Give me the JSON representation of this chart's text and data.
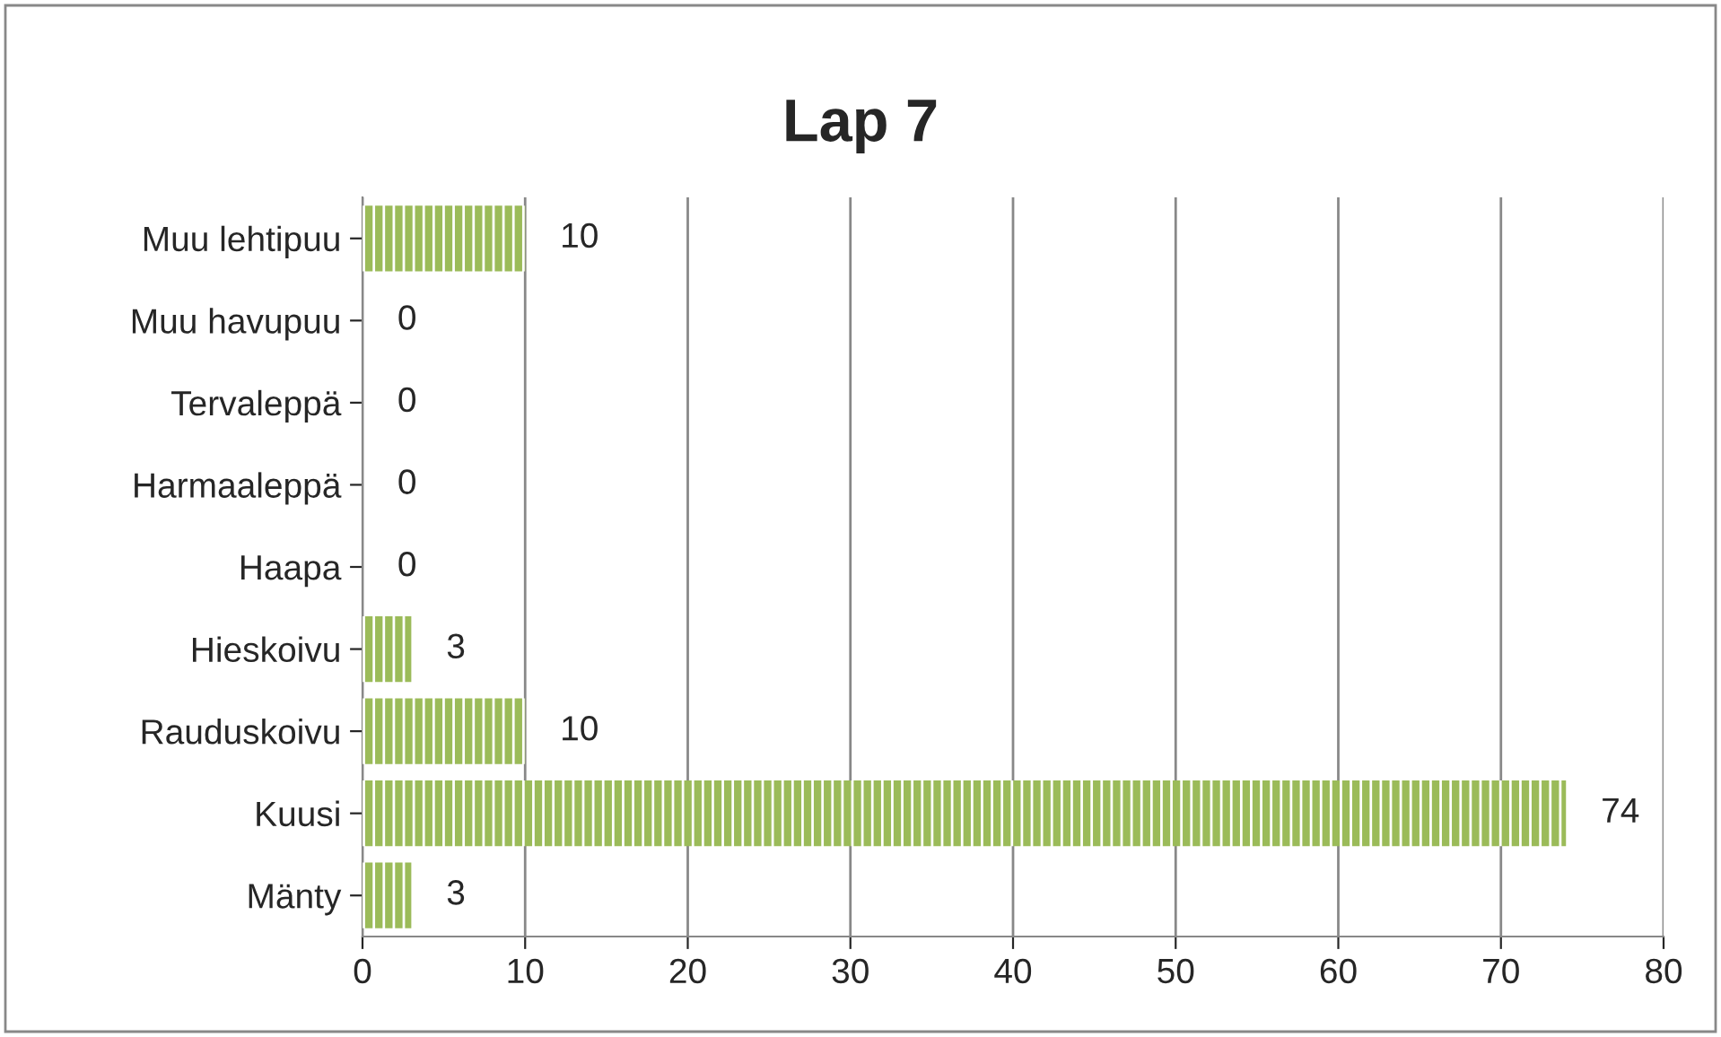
{
  "chart_data": {
    "type": "bar",
    "orientation": "horizontal",
    "title": "Lap 7",
    "categories": [
      "Muu lehtipuu",
      "Muu havupuu",
      "Tervaleppä",
      "Harmaaleppä",
      "Haapa",
      "Hieskoivu",
      "Rauduskoivu",
      "Kuusi",
      "Mänty"
    ],
    "values": [
      10,
      0,
      0,
      0,
      0,
      3,
      10,
      74,
      3
    ],
    "color": "#9bbb59",
    "xlim": [
      0,
      80
    ],
    "xticks": [
      0,
      10,
      20,
      30,
      40,
      50,
      60,
      70,
      80
    ],
    "grid": "x",
    "data_labels": true
  }
}
